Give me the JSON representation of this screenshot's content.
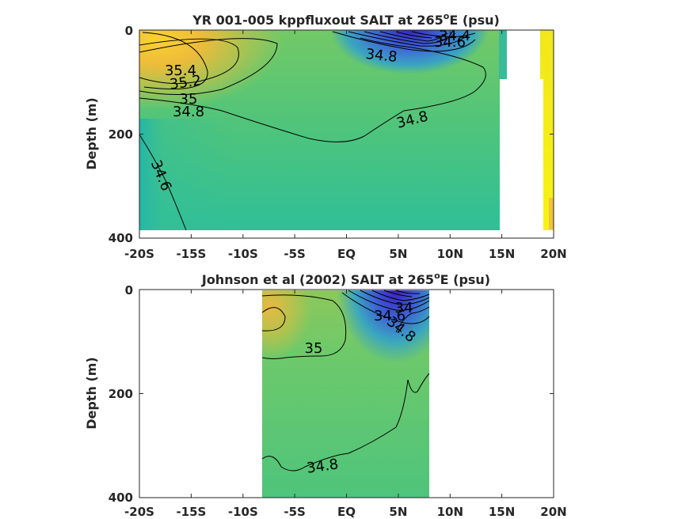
{
  "chart_data": [
    {
      "type": "heatmap",
      "title_main": "YR 001-005 kppfluxout SALT at 265",
      "title_sup": "o",
      "title_end": "E (psu)",
      "ylabel": "Depth (m)",
      "xlabel": "",
      "xlim": [
        -20,
        20
      ],
      "ylim": [
        400,
        0
      ],
      "x_ticks": [
        -20,
        -15,
        -10,
        -5,
        0,
        5,
        10,
        15,
        20
      ],
      "x_tick_labels": [
        "-20S",
        "-15S",
        "-10S",
        "-5S",
        "EQ",
        "5N",
        "10N",
        "15N",
        "20N"
      ],
      "y_ticks": [
        0,
        200,
        400
      ],
      "y_tick_labels": [
        "0",
        "200",
        "400"
      ],
      "contour_labels": [
        {
          "text": "35.4",
          "x": -14.8,
          "y": 38
        },
        {
          "text": "35.2",
          "x": -14.3,
          "y": 50
        },
        {
          "text": "35",
          "x": -15.0,
          "y": 66
        },
        {
          "text": "34.8",
          "x": -15.0,
          "y": 78
        },
        {
          "text": "34.8",
          "x": 3.3,
          "y": 24
        },
        {
          "text": "34.8",
          "x": 6.5,
          "y": 86
        },
        {
          "text": "34.6",
          "x": -18.2,
          "y": 138
        },
        {
          "text": "34.4",
          "x": 9.2,
          "y": 5
        },
        {
          "text": "34.6",
          "x": 8.7,
          "y": 12
        }
      ]
    },
    {
      "type": "heatmap",
      "title_main": "Johnson et al (2002) SALT at 265",
      "title_sup": "o",
      "title_end": "E (psu)",
      "ylabel": "Depth (m)",
      "xlabel": "",
      "xlim": [
        -20,
        20
      ],
      "ylim": [
        400,
        0
      ],
      "x_ticks": [
        -20,
        -15,
        -10,
        -5,
        0,
        5,
        10,
        15,
        20
      ],
      "x_tick_labels": [
        "-20S",
        "-15S",
        "-10S",
        "-5S",
        "EQ",
        "5N",
        "10N",
        "15N",
        "20N"
      ],
      "y_ticks": [
        0,
        200,
        400
      ],
      "y_tick_labels": [
        "0",
        "200",
        "400"
      ],
      "contour_labels": [
        {
          "text": "35",
          "x": -3.1,
          "y": 54
        },
        {
          "text": "34.8",
          "x": -2.2,
          "y": 337
        },
        {
          "text": "34",
          "x": 5.6,
          "y": 17
        },
        {
          "text": "34.6",
          "x": 4.2,
          "y": 24
        },
        {
          "text": "34.8",
          "x": 5.1,
          "y": 44
        }
      ]
    }
  ]
}
